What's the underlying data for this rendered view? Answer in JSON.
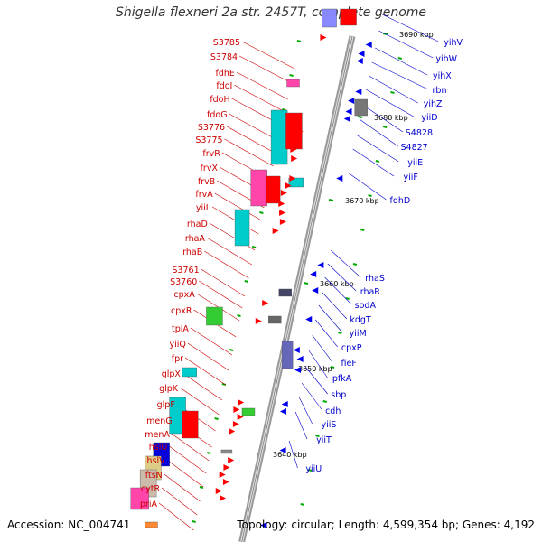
{
  "title": "Shigella flexneri 2a str. 2457T, complete genome",
  "footer": {
    "accession": "Accession: NC_004741",
    "summary": "Topology: circular; Length: 4,599,354 bp; Genes: 4,192"
  },
  "colors": {
    "left_labels": "#cc0000",
    "right_labels": "#0000cc",
    "backbone": "#999999",
    "tick": "#00aa00"
  },
  "kbp_labels": [
    "3690 kbp",
    "3680 kbp",
    "3670 kbp",
    "3660 kbp",
    "3650 kbp",
    "3640 kbp"
  ],
  "left_genes": [
    "S3785",
    "S3784",
    "fdhE",
    "fdoI",
    "fdoH",
    "fdoG",
    "S3776",
    "S3775",
    "frvR",
    "frvX",
    "frvB",
    "frvA",
    "yiiL",
    "rhaD",
    "rhaA",
    "rhaB",
    "S3761",
    "S3760",
    "cpxA",
    "cpxR",
    "tpiA",
    "yiiQ",
    "fpr",
    "glpX",
    "glpK",
    "glpF",
    "menG",
    "menA",
    "hslU",
    "hslV",
    "ftsN",
    "cytR",
    "priA"
  ],
  "right_genes": [
    "yihV",
    "yihW",
    "yihX",
    "rbn",
    "yihZ",
    "yiiD",
    "S4828",
    "S4827",
    "yiiE",
    "yiiF",
    "fdhD",
    "rhaS",
    "rhaR",
    "sodA",
    "kdgT",
    "yiiM",
    "cpxP",
    "fieF",
    "pfkA",
    "sbp",
    "cdh",
    "yiiS",
    "yiiT",
    "yiiU"
  ]
}
